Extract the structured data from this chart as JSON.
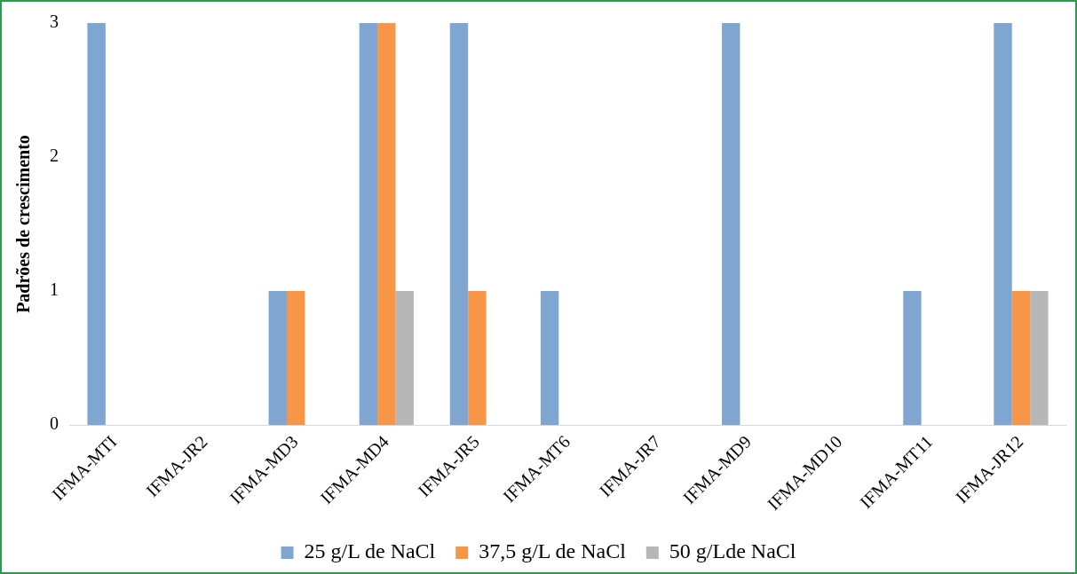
{
  "chart_data": {
    "type": "bar",
    "ylabel": "Padrões de crescimento",
    "categories": [
      "IFMA-MTI",
      "IFMA-JR2",
      "IFMA-MD3",
      "IFMA-MD4",
      "IFMA-JR5",
      "IFMA-MT6",
      "IFMA-JR7",
      "IFMA-MD9",
      "IFMA-MD10",
      "IFMA-MT11",
      "IFMA-JR12"
    ],
    "series": [
      {
        "name": "25 g/L de NaCl",
        "color": "#7fa6d0",
        "values": [
          3,
          0,
          1,
          3,
          3,
          1,
          0,
          3,
          0,
          1,
          3
        ]
      },
      {
        "name": "37,5 g/L de NaCl",
        "color": "#f79646",
        "values": [
          0,
          0,
          1,
          3,
          1,
          0,
          0,
          0,
          0,
          0,
          1
        ]
      },
      {
        "name": "50 g/Lde NaCl",
        "color": "#b7b7b7",
        "values": [
          0,
          0,
          0,
          1,
          0,
          0,
          0,
          0,
          0,
          0,
          1
        ]
      }
    ],
    "ylim": [
      0,
      3
    ],
    "yticks": [
      0,
      1,
      2,
      3
    ],
    "grid": false,
    "legend": "bottom"
  }
}
